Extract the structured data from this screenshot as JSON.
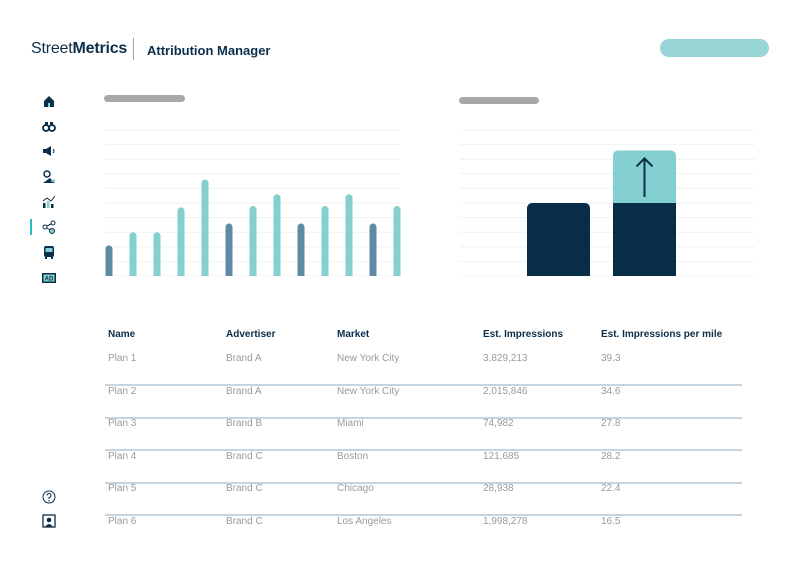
{
  "header": {
    "brand_light": "Street",
    "brand_bold": "Metrics",
    "title": "Attribution Manager"
  },
  "sidebar": {
    "items": [
      {
        "icon": "home-icon"
      },
      {
        "icon": "binoculars-icon"
      },
      {
        "icon": "megaphone-icon"
      },
      {
        "icon": "map-pin-icon"
      },
      {
        "icon": "chart-icon"
      },
      {
        "icon": "attribution-icon",
        "active": true
      },
      {
        "icon": "bus-icon"
      },
      {
        "icon": "ad-icon"
      }
    ],
    "bottom": [
      {
        "icon": "help-icon"
      },
      {
        "icon": "profile-icon"
      }
    ]
  },
  "colors": {
    "navy": "#0b2e4a",
    "dark_bar": "#5f8aa6",
    "light_bar": "#84cfd0",
    "accent": "#97d5d6",
    "stack_base": "#072d47"
  },
  "chart_data": [
    {
      "type": "bar",
      "title": "",
      "ylim": [
        0,
        10
      ],
      "grid": true,
      "values": [
        2.1,
        3.0,
        3.0,
        4.7,
        6.6,
        3.6,
        4.8,
        5.6,
        3.6,
        4.8,
        5.6,
        3.6,
        4.8
      ],
      "highlight": [
        "dark",
        "light",
        "light",
        "light",
        "light",
        "dark",
        "light",
        "light",
        "dark",
        "light",
        "light",
        "dark",
        "light"
      ]
    },
    {
      "type": "bar",
      "title": "",
      "ylim": [
        0,
        10
      ],
      "grid": true,
      "stacked": true,
      "series": [
        {
          "values": [
            5,
            5
          ]
        },
        {
          "values": [
            0,
            3.6
          ]
        }
      ],
      "annotation": "arrow-up-icon"
    }
  ],
  "table": {
    "columns": [
      "Name",
      "Advertiser",
      "Market",
      "Est. Impressions",
      "Est. Impressions per mile"
    ],
    "rows": [
      [
        "Plan 1",
        "Brand A",
        "New York City",
        "3,829,213",
        "39.3"
      ],
      [
        "Plan 2",
        "Brand A",
        "New York City",
        "2,015,846",
        "34.6"
      ],
      [
        "Plan 3",
        "Brand B",
        "Miami",
        "74,982",
        "27.8"
      ],
      [
        "Plan 4",
        "Brand C",
        "Boston",
        "121,685",
        "28.2"
      ],
      [
        "Plan 5",
        "Brand C",
        "Chicago",
        "28,938",
        "22.4"
      ],
      [
        "Plan 6",
        "Brand C",
        "Los Angeles",
        "1,998,278",
        "16.5"
      ]
    ]
  }
}
